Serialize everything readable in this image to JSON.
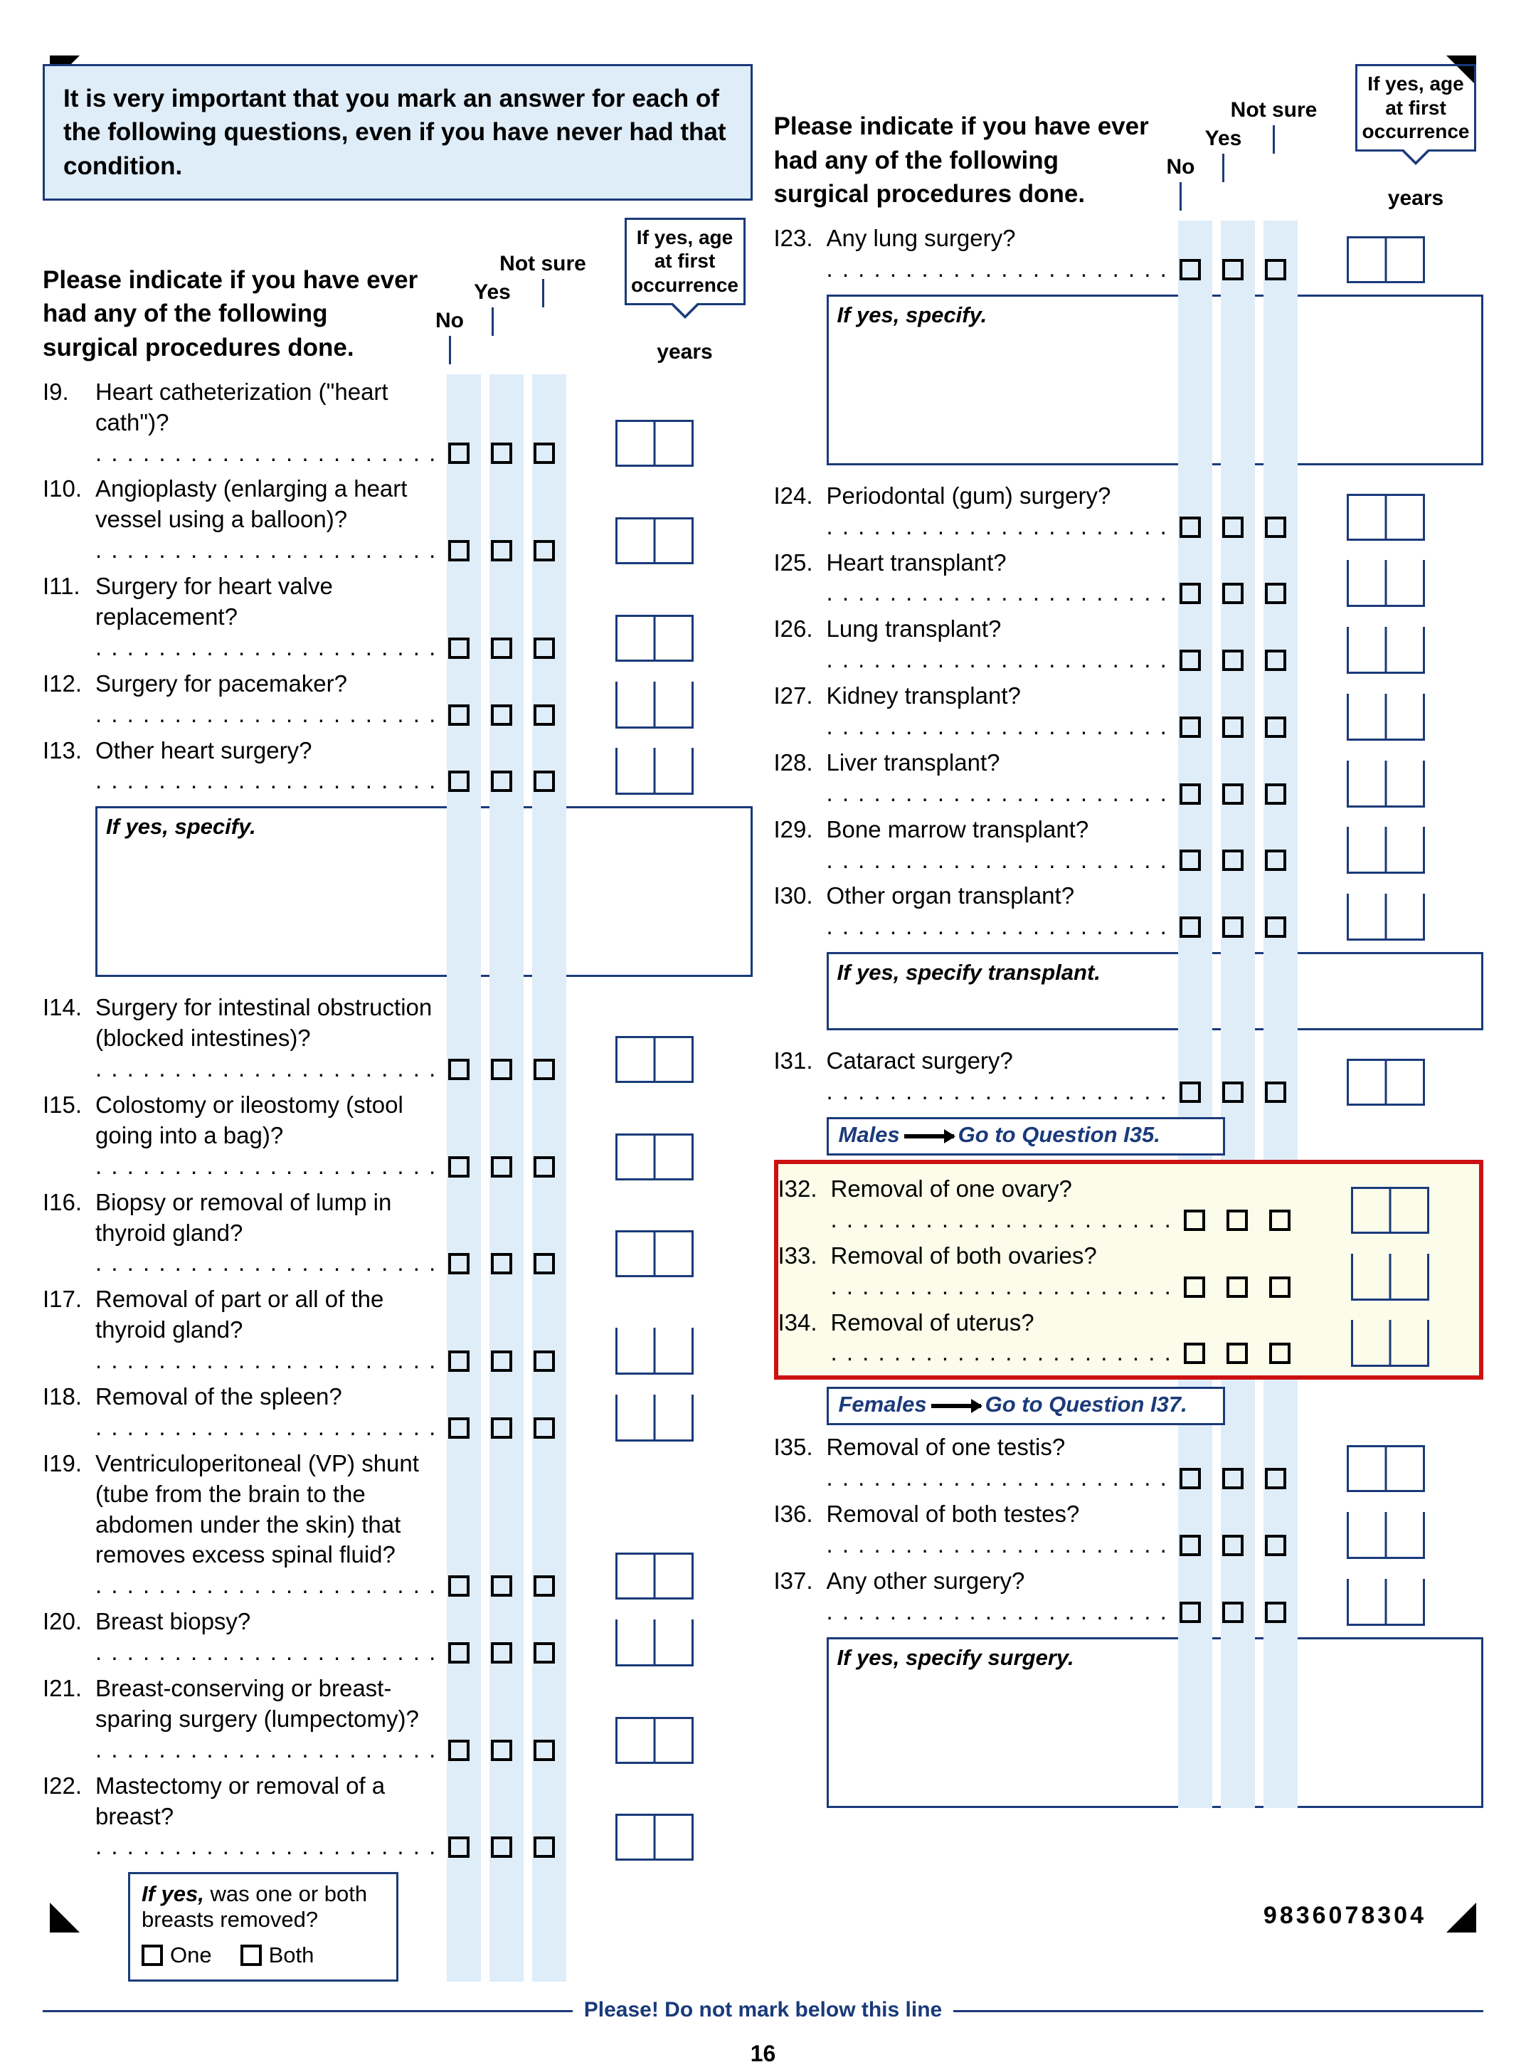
{
  "colors": {
    "band_bg": "#dfedf9",
    "border_blue": "#1a3a7a",
    "highlight_border": "#cc1111",
    "highlight_bg": "#fcfcea"
  },
  "notice": "It is very important that you mark an answer for each of the following questions, even if you have never had that condition.",
  "section_prompt": "Please indicate if you have ever had any of the following surgical procedures done.",
  "headers": {
    "no": "No",
    "yes": "Yes",
    "not_sure": "Not sure",
    "age_box": "If yes, age at first occurrence",
    "years": "years"
  },
  "left": {
    "items": [
      {
        "num": "I9.",
        "text": "Heart catheterization (\"heart cath\")?"
      },
      {
        "num": "I10.",
        "text": "Angioplasty (enlarging a heart vessel using a balloon)?"
      },
      {
        "num": "I11.",
        "text": "Surgery for heart valve replacement?"
      },
      {
        "num": "I12.",
        "text": "Surgery for pacemaker?"
      },
      {
        "num": "I13.",
        "text": "Other heart surgery?"
      }
    ],
    "specify1": "If yes, specify.",
    "items2": [
      {
        "num": "I14.",
        "text": "Surgery for intestinal obstruction (blocked intestines)?"
      },
      {
        "num": "I15.",
        "text": "Colostomy or ileostomy (stool going into a bag)?"
      },
      {
        "num": "I16.",
        "text": "Biopsy or removal of lump in thyroid gland?"
      },
      {
        "num": "I17.",
        "text": "Removal of part or all of the thyroid gland?"
      },
      {
        "num": "I18.",
        "text": "Removal of the spleen?"
      },
      {
        "num": "I19.",
        "text": "Ventriculoperitoneal (VP) shunt (tube from the brain to the abdomen under the skin) that removes excess spinal fluid?"
      },
      {
        "num": "I20.",
        "text": "Breast biopsy?"
      },
      {
        "num": "I21.",
        "text": "Breast-conserving or breast-sparing surgery (lumpectomy)?"
      },
      {
        "num": "I22.",
        "text": "Mastectomy or removal of a breast?"
      }
    ],
    "breast_box": {
      "prompt_bold": "If yes,",
      "prompt_rest": " was one or both breasts removed?",
      "opt1": "One",
      "opt2": "Both"
    }
  },
  "right": {
    "items1": [
      {
        "num": "I23.",
        "text": "Any lung surgery?"
      }
    ],
    "specify1": "If yes, specify.",
    "items2": [
      {
        "num": "I24.",
        "text": "Periodontal (gum) surgery?"
      },
      {
        "num": "I25.",
        "text": "Heart transplant?"
      },
      {
        "num": "I26.",
        "text": "Lung transplant?"
      },
      {
        "num": "I27.",
        "text": "Kidney transplant?"
      },
      {
        "num": "I28.",
        "text": "Liver transplant?"
      },
      {
        "num": "I29.",
        "text": "Bone marrow transplant?"
      },
      {
        "num": "I30.",
        "text": "Other organ transplant?"
      }
    ],
    "specify2": "If yes, specify transplant.",
    "items3": [
      {
        "num": "I31.",
        "text": "Cataract surgery?"
      }
    ],
    "skip_males": {
      "label": "Males",
      "dest": "Go to Question I35."
    },
    "female_items": [
      {
        "num": "I32.",
        "text": "Removal of one ovary?"
      },
      {
        "num": "I33.",
        "text": "Removal of both ovaries?"
      },
      {
        "num": "I34.",
        "text": "Removal of uterus?"
      }
    ],
    "skip_females": {
      "label": "Females",
      "dest": "Go to Question I37."
    },
    "items4": [
      {
        "num": "I35.",
        "text": "Removal of one testis?"
      },
      {
        "num": "I36.",
        "text": "Removal of both testes?"
      },
      {
        "num": "I37.",
        "text": "Any other surgery?"
      }
    ],
    "specify3": "If yes, specify surgery."
  },
  "footer": {
    "line": "Please! Do not mark below this line",
    "page": "16",
    "doc_id": "9836078304"
  }
}
